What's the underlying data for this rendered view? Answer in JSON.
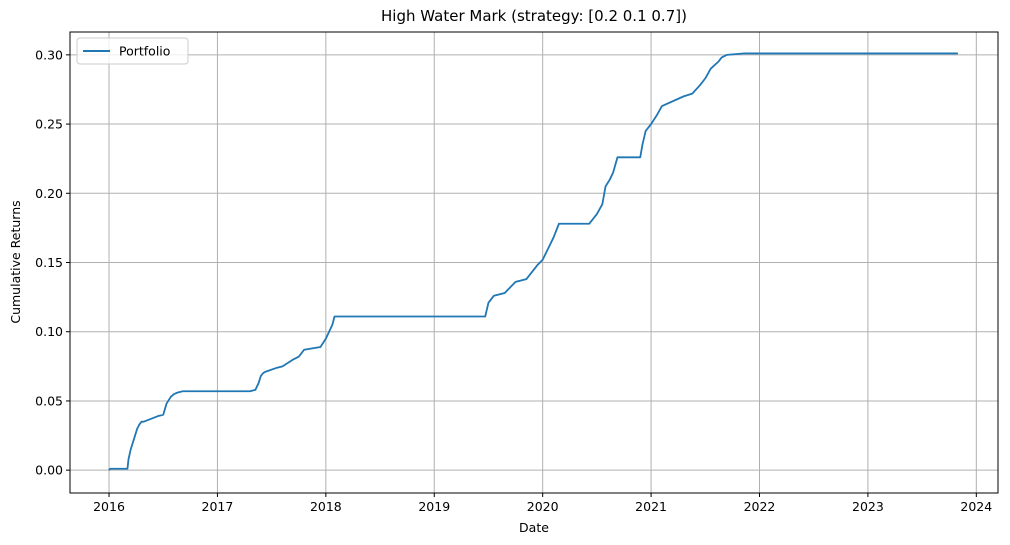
{
  "chart_data": {
    "type": "line",
    "title": "High Water Mark (strategy: [0.2 0.1 0.7])",
    "xlabel": "Date",
    "ylabel": "Cumulative Returns",
    "xlim": [
      2015.64,
      2024.2
    ],
    "ylim": [
      -0.0165,
      0.3165
    ],
    "xticks": [
      2016,
      2017,
      2018,
      2019,
      2020,
      2021,
      2022,
      2023,
      2024
    ],
    "xtick_labels": [
      "2016",
      "2017",
      "2018",
      "2019",
      "2020",
      "2021",
      "2022",
      "2023",
      "2024"
    ],
    "yticks": [
      0.0,
      0.05,
      0.1,
      0.15,
      0.2,
      0.25,
      0.3
    ],
    "ytick_labels": [
      "0.00",
      "0.05",
      "0.10",
      "0.15",
      "0.20",
      "0.25",
      "0.30"
    ],
    "grid": true,
    "legend_position": "top-left",
    "series": [
      {
        "name": "Portfolio",
        "color": "#1f77b4",
        "x": [
          2016.0,
          2016.01,
          2016.17,
          2016.18,
          2016.2,
          2016.22,
          2016.24,
          2016.26,
          2016.28,
          2016.3,
          2016.32,
          2016.45,
          2016.5,
          2016.53,
          2016.57,
          2016.6,
          2016.63,
          2016.68,
          2017.0,
          2017.3,
          2017.35,
          2017.38,
          2017.4,
          2017.42,
          2017.44,
          2017.55,
          2017.6,
          2017.7,
          2017.75,
          2017.8,
          2017.95,
          2018.0,
          2018.03,
          2018.06,
          2018.08,
          2019.0,
          2019.47,
          2019.5,
          2019.55,
          2019.65,
          2019.7,
          2019.75,
          2019.85,
          2019.9,
          2019.95,
          2020.0,
          2020.05,
          2020.1,
          2020.15,
          2020.43,
          2020.5,
          2020.55,
          2020.58,
          2020.62,
          2020.65,
          2020.69,
          2020.9,
          2020.92,
          2020.95,
          2021.0,
          2021.05,
          2021.1,
          2021.3,
          2021.38,
          2021.45,
          2021.5,
          2021.55,
          2021.62,
          2021.65,
          2021.7,
          2021.85,
          2022.5,
          2023.0,
          2023.83
        ],
        "y": [
          0.0,
          0.001,
          0.001,
          0.008,
          0.015,
          0.02,
          0.025,
          0.03,
          0.033,
          0.035,
          0.035,
          0.039,
          0.04,
          0.048,
          0.053,
          0.055,
          0.056,
          0.057,
          0.057,
          0.057,
          0.058,
          0.063,
          0.068,
          0.07,
          0.071,
          0.074,
          0.075,
          0.08,
          0.082,
          0.087,
          0.089,
          0.095,
          0.1,
          0.105,
          0.111,
          0.111,
          0.111,
          0.121,
          0.126,
          0.128,
          0.132,
          0.136,
          0.138,
          0.143,
          0.148,
          0.152,
          0.16,
          0.168,
          0.178,
          0.178,
          0.185,
          0.192,
          0.205,
          0.21,
          0.215,
          0.226,
          0.226,
          0.235,
          0.245,
          0.25,
          0.256,
          0.263,
          0.27,
          0.272,
          0.278,
          0.283,
          0.29,
          0.295,
          0.298,
          0.3,
          0.301,
          0.301,
          0.301,
          0.301
        ]
      }
    ]
  }
}
